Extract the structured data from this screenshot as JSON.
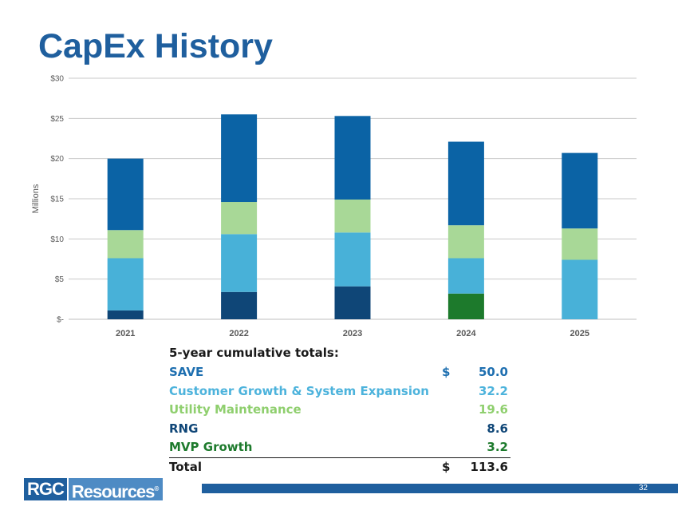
{
  "title": "CapEx History",
  "colors": {
    "SAVE": "#0b63a5",
    "Customer Growth & System Expansion": "#48b1d8",
    "Utility Maintenance": "#a8d897",
    "RNG": "#0f4677",
    "MVP Growth": "#1d7a2c",
    "title": "#1f5f9e"
  },
  "chart_data": {
    "type": "bar",
    "stacked": true,
    "ylabel": "Millions",
    "ylim": [
      0,
      30
    ],
    "yticks": [
      0,
      5,
      10,
      15,
      20,
      25,
      30
    ],
    "ytick_labels": [
      "$-",
      "$5",
      "$10",
      "$15",
      "$20",
      "$25",
      "$30"
    ],
    "categories": [
      "2021",
      "2022",
      "2023",
      "2024",
      "2025"
    ],
    "grid": true,
    "legend": "none",
    "series": [
      {
        "name": "RNG",
        "values": [
          1.1,
          3.4,
          4.1,
          0,
          0
        ]
      },
      {
        "name": "MVP Growth",
        "values": [
          0,
          0,
          0,
          3.2,
          0
        ]
      },
      {
        "name": "Customer Growth & System Expansion",
        "values": [
          6.5,
          7.2,
          6.7,
          4.4,
          7.4
        ]
      },
      {
        "name": "Utility Maintenance",
        "values": [
          3.5,
          4.0,
          4.1,
          4.1,
          3.9
        ]
      },
      {
        "name": "SAVE",
        "values": [
          8.9,
          10.9,
          10.4,
          10.4,
          9.4
        ]
      }
    ]
  },
  "totals": {
    "heading": "5-year cumulative totals:",
    "rows": [
      {
        "label": "SAVE",
        "currency": "$",
        "amount": "50.0",
        "color": "#1e6fb0"
      },
      {
        "label": "Customer Growth & System Expansion",
        "currency": "",
        "amount": "32.2",
        "color": "#4db3dc"
      },
      {
        "label": "Utility Maintenance",
        "currency": "",
        "amount": "19.6",
        "color": "#8fcf6e"
      },
      {
        "label": "RNG",
        "currency": "",
        "amount": "8.6",
        "color": "#0f4677"
      },
      {
        "label": "MVP Growth",
        "currency": "",
        "amount": "3.2",
        "color": "#1d7a2c"
      }
    ],
    "total": {
      "label": "Total",
      "currency": "$",
      "amount": "113.6"
    }
  },
  "footer": {
    "logo_part1": "RGC",
    "logo_part2": "Resources",
    "page_number": "32"
  }
}
